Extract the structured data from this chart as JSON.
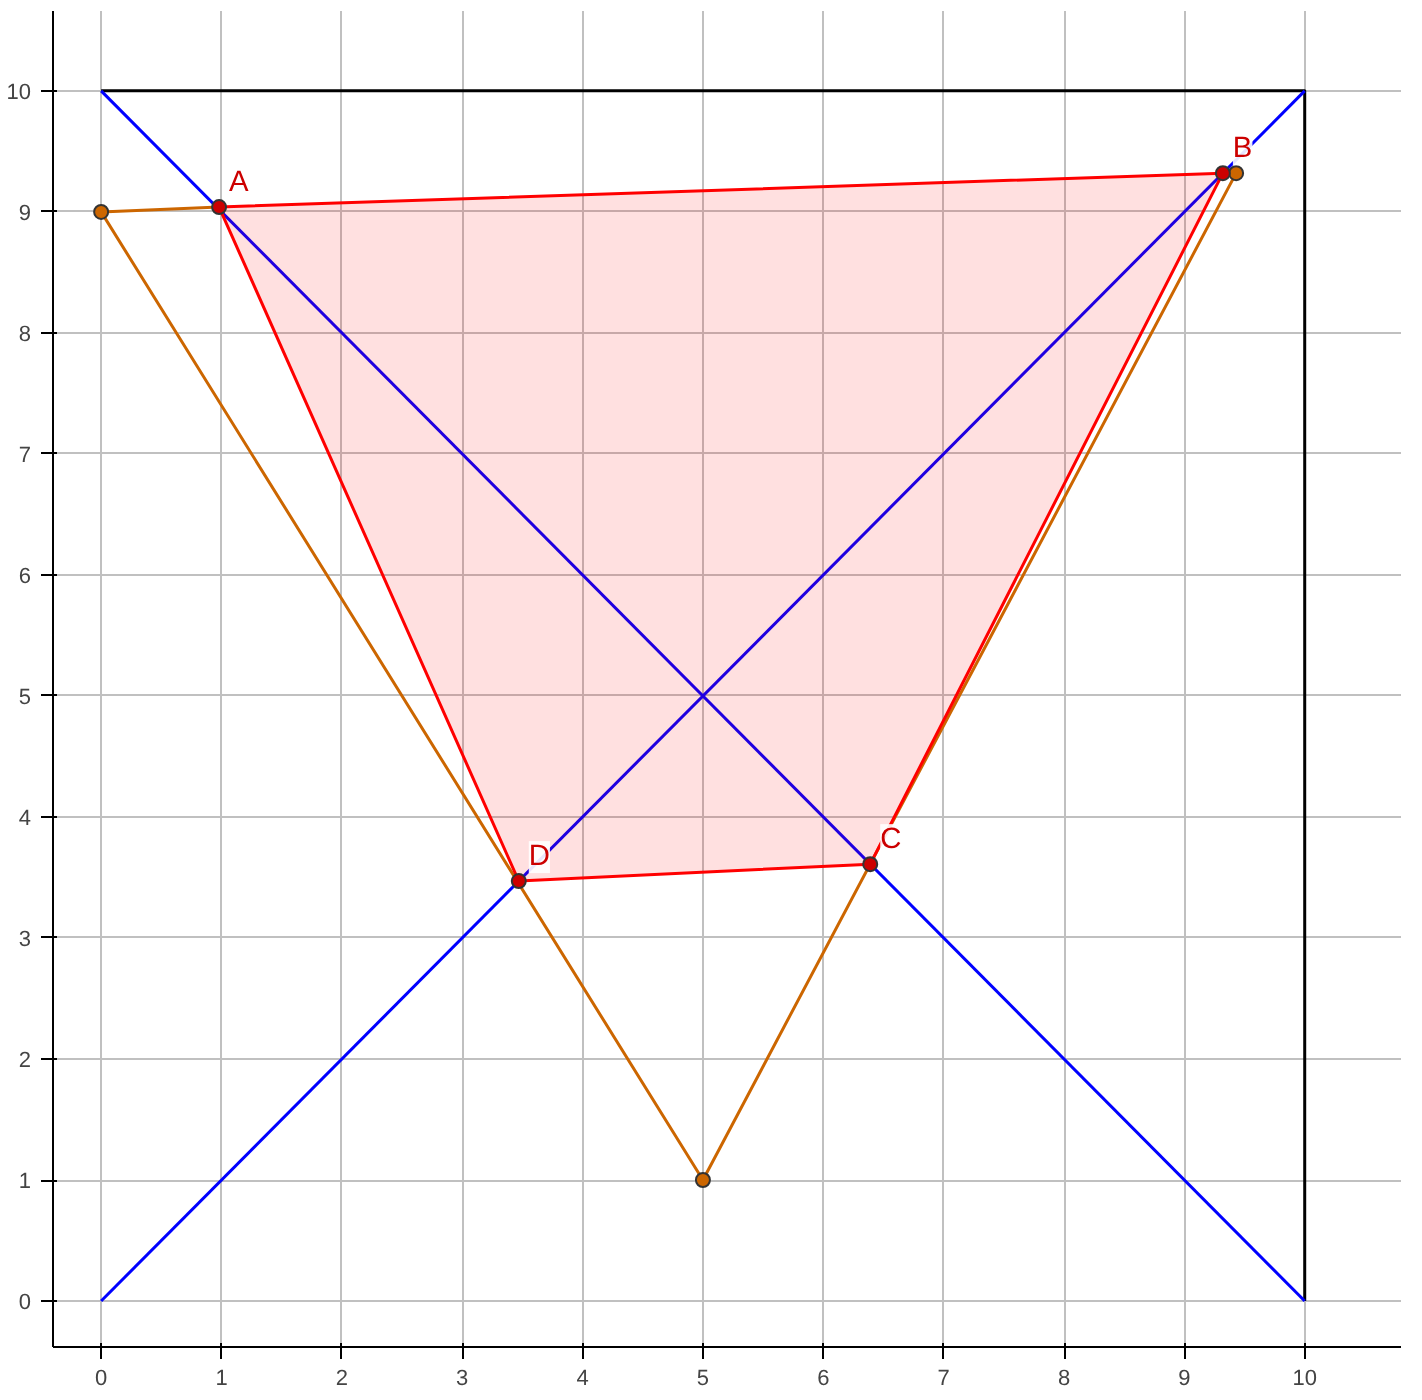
{
  "chart_data": {
    "type": "line",
    "xlim": [
      -0.4,
      10.8
    ],
    "ylim": [
      -0.38,
      10.66
    ],
    "xticks": [
      0,
      1,
      2,
      3,
      4,
      5,
      6,
      7,
      8,
      9,
      10
    ],
    "yticks": [
      0,
      1,
      2,
      3,
      4,
      5,
      6,
      7,
      8,
      9,
      10
    ],
    "grid": true,
    "series": [
      {
        "color": "#000000",
        "x": [
          0,
          10,
          10
        ],
        "values": [
          10,
          10,
          0
        ]
      },
      {
        "color": "#0000ff",
        "x": [
          0,
          10
        ],
        "values": [
          10,
          0
        ]
      },
      {
        "color": "#0000ff",
        "x": [
          0,
          10
        ],
        "values": [
          0,
          10
        ]
      },
      {
        "color": "#cc6600",
        "x": [
          0,
          5,
          9.43
        ],
        "values": [
          9.0,
          1.0,
          9.32
        ]
      },
      {
        "color": "#cc6600",
        "x": [
          0,
          0.98
        ],
        "values": [
          9.0,
          9.04
        ]
      },
      {
        "type": "area",
        "color": "#ff0000",
        "x": [
          0.98,
          9.32,
          6.39,
          3.47,
          0.98
        ],
        "values": [
          9.04,
          9.32,
          3.61,
          3.47,
          9.04
        ]
      },
      {
        "type": "scatter",
        "color": "#cc6600",
        "x": [
          0,
          5,
          9.43
        ],
        "values": [
          9.0,
          1.0,
          9.32
        ]
      },
      {
        "type": "scatter",
        "color": "#cc0000",
        "x": [
          0.98,
          9.32,
          6.39,
          3.47
        ],
        "values": [
          9.04,
          9.32,
          3.61,
          3.47
        ]
      }
    ],
    "annotations": [
      {
        "text": "A",
        "x": 0.98,
        "y": 9.04
      },
      {
        "text": "B",
        "x": 9.32,
        "y": 9.32
      },
      {
        "text": "C",
        "x": 6.39,
        "y": 3.61
      },
      {
        "text": "D",
        "x": 3.47,
        "y": 3.47
      }
    ]
  }
}
